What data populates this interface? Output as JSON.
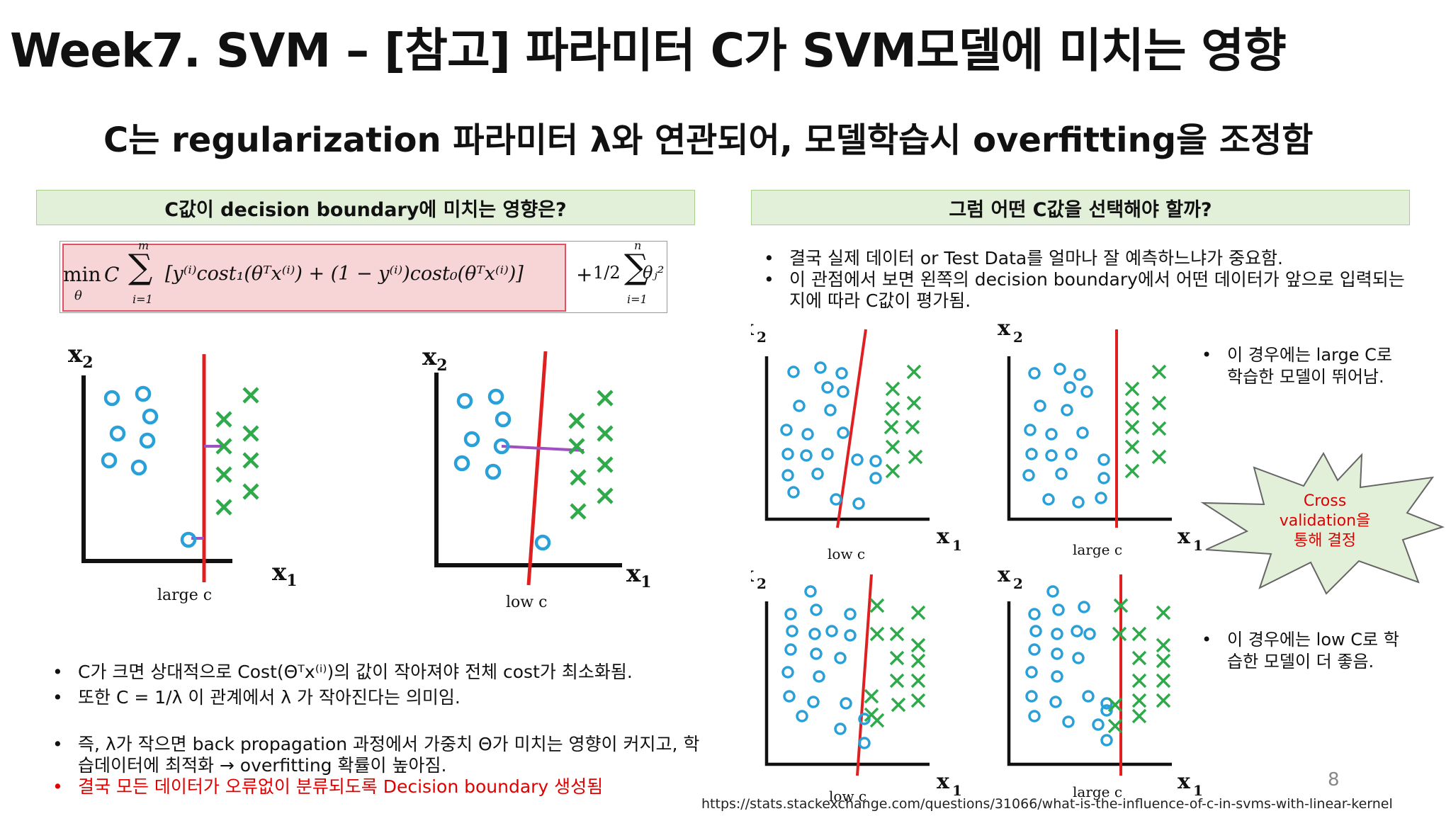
{
  "title": "Week7. SVM – [참고] 파라미터 C가 SVM모델에 미치는 영향",
  "subtitle": "C는 regularization 파라미터 λ와 연관되어, 모델학습시 overfitting을 조정함",
  "left_panel": {
    "header": "C값이 decision boundary에 미치는 영향은?",
    "formula": {
      "min": "min",
      "theta": "θ",
      "c": "C",
      "sum_top": "m",
      "sum_bottom": "i=1",
      "body": "[y⁽ⁱ⁾cost₁(θᵀx⁽ⁱ⁾) + (1 − y⁽ⁱ⁾)cost₀(θᵀx⁽ⁱ⁾)]",
      "plus": "+",
      "half": "1/2",
      "sum2_top": "n",
      "sum2_bottom": "i=1",
      "theta_sq": "θⱼ²"
    },
    "plots": [
      {
        "xlabel": "x",
        "xsub": "1",
        "ylabel": "x",
        "ysub": "2",
        "caption": "large c"
      },
      {
        "xlabel": "x",
        "xsub": "1",
        "ylabel": "x",
        "ysub": "2",
        "caption": "low c"
      }
    ],
    "bullets": [
      "C가 크면 상대적으로 Cost(Θᵀx⁽ⁱ⁾)의 값이 작아져야 전체 cost가 최소화됨.",
      "또한 C = 1/λ 이 관계에서 λ 가 작아진다는 의미임.",
      "즉, λ가 작으면 back propagation 과정에서 가중치 Θ가 미치는 영향이 커지고, 학습데이터에 최적화 → overfitting 확률이 높아짐.",
      "결국 모든 데이터가 오류없이 분류되도록 Decision boundary 생성됨"
    ]
  },
  "right_panel": {
    "header": "그럼 어떤 C값을 선택해야 할까?",
    "bullets": [
      "결국 실제 데이터 or Test Data를 얼마나 잘 예측하느냐가 중요함.",
      "이 관점에서 보면 왼쪽의 decision boundary에서 어떤 데이터가 앞으로 입력되는지에 따라 C값이 평가됨."
    ],
    "plots": [
      {
        "caption": "low c"
      },
      {
        "caption": "large c"
      },
      {
        "caption": "low c"
      },
      {
        "caption": "large c"
      }
    ],
    "note_top": "이 경우에는 large C로 학습한 모델이 뛰어남.",
    "note_bottom": "이 경우에는 low C로 학습한 모델이 더 좋음.",
    "star_lines": [
      "Cross",
      "validation을",
      "통해 결정"
    ]
  },
  "colors": {
    "circle": "#2aa0d8",
    "cross": "#2eaa4a",
    "boundary": "#e02020",
    "margin": "#a050c0",
    "highlight": "#e05060",
    "header_bg": "#e2efd9"
  },
  "footer": {
    "url": "https://stats.stackexchange.com/questions/31066/what-is-the-influence-of-c-in-svms-with-linear-kernel",
    "page": "8"
  }
}
